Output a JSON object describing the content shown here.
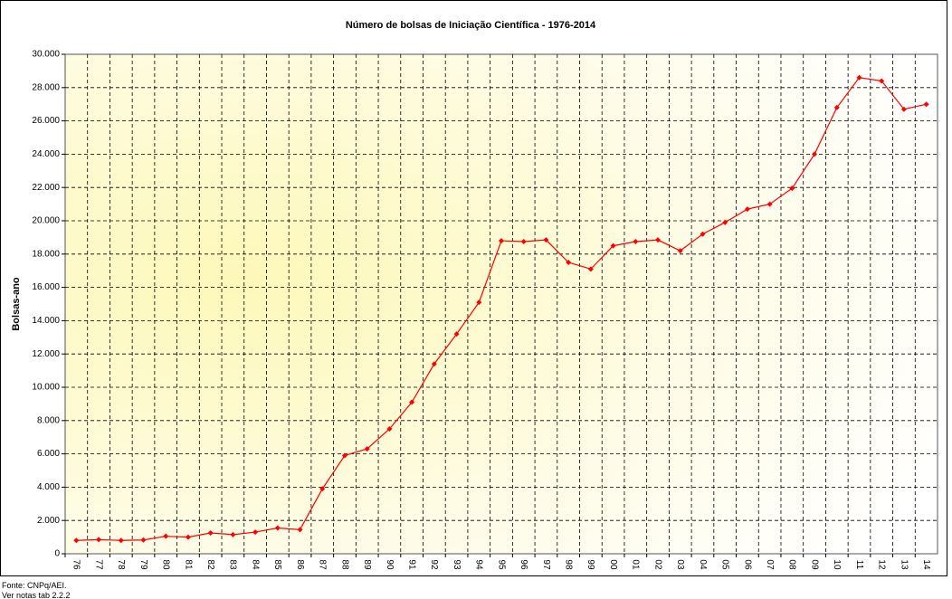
{
  "chart_data": {
    "type": "line",
    "title": "Número de bolsas de Iniciação Científica - 1976-2014",
    "y_label": "Bolsas-ano",
    "categories": [
      "76",
      "77",
      "78",
      "79",
      "80",
      "81",
      "82",
      "83",
      "84",
      "85",
      "86",
      "87",
      "88",
      "89",
      "90",
      "91",
      "92",
      "93",
      "94",
      "95",
      "96",
      "97",
      "98",
      "99",
      "00",
      "01",
      "02",
      "03",
      "04",
      "05",
      "06",
      "07",
      "08",
      "09",
      "10",
      "11",
      "12",
      "13",
      "14"
    ],
    "series": [
      {
        "name": "Bolsas-ano",
        "color": "#ff0000",
        "values": [
          800,
          850,
          800,
          830,
          1050,
          1000,
          1250,
          1150,
          1300,
          1550,
          1450,
          3900,
          5900,
          6300,
          7500,
          9100,
          11400,
          13200,
          15100,
          18800,
          18750,
          18850,
          17500,
          17100,
          18500,
          18750,
          18850,
          18200,
          19200,
          19900,
          20700,
          21000,
          21950,
          24000,
          26800,
          28600,
          28400,
          26700,
          27000
        ]
      }
    ],
    "ylim": [
      0,
      30000
    ],
    "yticks": [
      0,
      {
        "value": 2000,
        "label": "2.000"
      },
      {
        "value": 4000,
        "label": "4.000"
      },
      {
        "value": 6000,
        "label": "6.000"
      },
      {
        "value": 8000,
        "label": "8.000"
      },
      {
        "value": 10000,
        "label": "10.000"
      },
      {
        "value": 12000,
        "label": "12.000"
      },
      {
        "value": 14000,
        "label": "14.000"
      },
      {
        "value": 16000,
        "label": "16.000"
      },
      {
        "value": 18000,
        "label": "18.000"
      },
      {
        "value": 20000,
        "label": "20.000"
      },
      {
        "value": 22000,
        "label": "22.000"
      },
      {
        "value": 24000,
        "label": "24.000"
      },
      {
        "value": 26000,
        "label": "26.000"
      },
      {
        "value": 28000,
        "label": "28.000"
      },
      {
        "value": 30000,
        "label": "30.000"
      }
    ],
    "grid": true,
    "notes": [
      "Fonte: CNPq/AEI.",
      "Ver notas tab 2.2.2"
    ]
  }
}
